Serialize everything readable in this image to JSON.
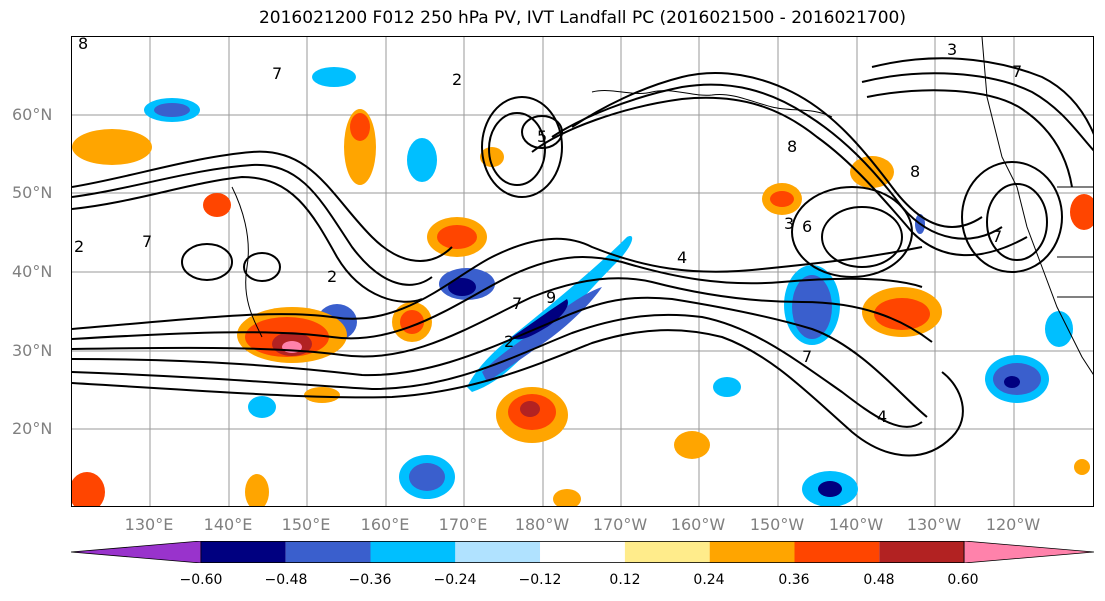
{
  "title": "2016021200 F012 250 hPa PV, IVT Landfall PC (2016021500 - 2016021700)",
  "lat_labels": [
    "60°N",
    "50°N",
    "40°N",
    "30°N",
    "20°N"
  ],
  "lon_labels": [
    "130°E",
    "140°E",
    "150°E",
    "160°E",
    "170°E",
    "180°W",
    "170°W",
    "160°W",
    "150°W",
    "140°W",
    "130°W",
    "120°W"
  ],
  "colorbar": {
    "colors": [
      "#9933cc",
      "#000080",
      "#3a5fcd",
      "#00bfff",
      "#b0e2ff",
      "#ffffff",
      "#ffec8b",
      "#ffa500",
      "#ff4500",
      "#b22222",
      "#ff82ab"
    ],
    "tick_labels": [
      "−0.60",
      "−0.48",
      "−0.36",
      "−0.24",
      "−0.12",
      "0.12",
      "0.24",
      "0.36",
      "0.48",
      "0.60"
    ]
  },
  "contour_labels": [
    "8",
    "7",
    "2",
    "5",
    "3",
    "7",
    "8",
    "2",
    "7",
    "2",
    "7",
    "9",
    "2",
    "4",
    "3",
    "6",
    "7",
    "4",
    "8",
    "7"
  ],
  "field_colors": {
    "neg_strong": "#000080",
    "neg_mid": "#3a5fcd",
    "neg_weak": "#00bfff",
    "pos_weak": "#ffa500",
    "pos_mid": "#ff4500",
    "pos_strong": "#b22222",
    "pos_max": "#ff82ab"
  }
}
